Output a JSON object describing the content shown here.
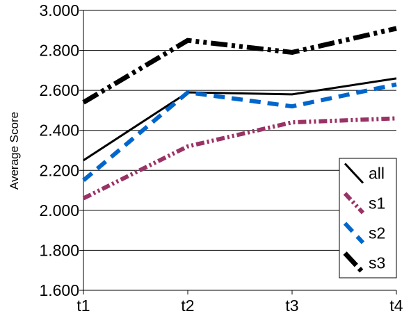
{
  "chart_data": {
    "type": "line",
    "title": "",
    "xlabel": "",
    "ylabel": "Average Score",
    "categories": [
      "t1",
      "t2",
      "t3",
      "t4"
    ],
    "ylim": [
      1.6,
      3.0
    ],
    "ytick_step": 0.2,
    "ytick_labels": [
      "1.600",
      "1.800",
      "2.000",
      "2.200",
      "2.400",
      "2.600",
      "2.800",
      "3.000"
    ],
    "grid": "horizontal",
    "legend_position": "bottom-right",
    "series": [
      {
        "name": "all",
        "values": [
          2.25,
          2.59,
          2.58,
          2.66
        ],
        "color": "#000000",
        "style": "solid"
      },
      {
        "name": "s1",
        "values": [
          2.06,
          2.32,
          2.44,
          2.46
        ],
        "color": "#993366",
        "style": "dash-dot-dot"
      },
      {
        "name": "s2",
        "values": [
          2.15,
          2.59,
          2.52,
          2.63
        ],
        "color": "#0066CC",
        "style": "dashed"
      },
      {
        "name": "s3",
        "values": [
          2.54,
          2.85,
          2.79,
          2.91
        ],
        "color": "#000000",
        "style": "thick-dash-dot-dot"
      }
    ]
  }
}
